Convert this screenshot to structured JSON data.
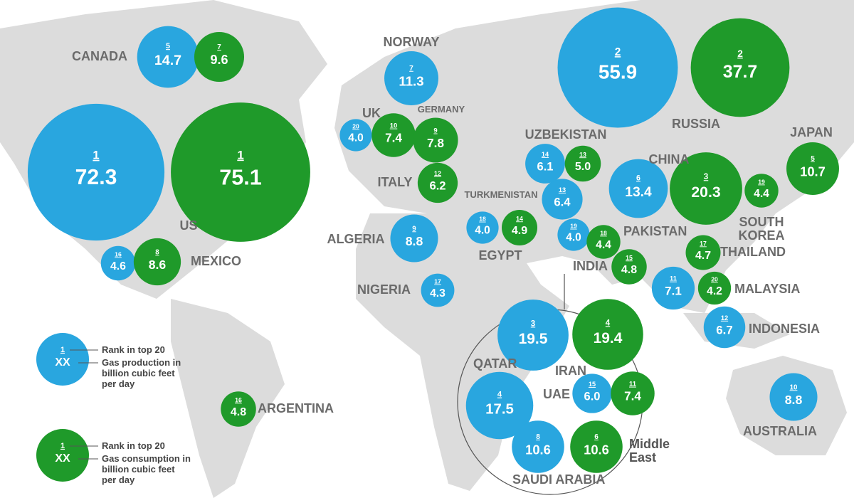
{
  "colors": {
    "production": "#29a6df",
    "consumption": "#1f9a2a"
  },
  "countries": [
    {
      "name": "CANADA",
      "production": {
        "rank": 5,
        "value": 14.7
      },
      "consumption": {
        "rank": 7,
        "value": 9.6
      }
    },
    {
      "name": "US",
      "production": {
        "rank": 1,
        "value": 72.3
      },
      "consumption": {
        "rank": 1,
        "value": 75.1
      }
    },
    {
      "name": "MEXICO",
      "production": {
        "rank": 16,
        "value": 4.6
      },
      "consumption": {
        "rank": 8,
        "value": 8.6
      }
    },
    {
      "name": "NORWAY",
      "production": {
        "rank": 7,
        "value": 11.3
      }
    },
    {
      "name": "UK",
      "production": {
        "rank": 20,
        "value": 4.0,
        "label": "4.0"
      },
      "consumption": {
        "rank": 10,
        "value": 7.4
      }
    },
    {
      "name": "GERMANY",
      "consumption": {
        "rank": 9,
        "value": 7.8
      }
    },
    {
      "name": "ITALY",
      "consumption": {
        "rank": 12,
        "value": 6.2
      }
    },
    {
      "name": "ALGERIA",
      "production": {
        "rank": 9,
        "value": 8.8
      }
    },
    {
      "name": "EGYPT",
      "production": {
        "rank": 18,
        "value": 4.0,
        "label": "4.0"
      },
      "consumption": {
        "rank": 14,
        "value": 4.9
      }
    },
    {
      "name": "TURKMENISTAN",
      "production": {
        "rank": 13,
        "value": 6.4
      }
    },
    {
      "name": "UZBEKISTAN",
      "production": {
        "rank": 14,
        "value": 6.1
      },
      "consumption": {
        "rank": 13,
        "value": 5.0,
        "label": "5.0"
      }
    },
    {
      "name": "RUSSIA",
      "production": {
        "rank": 2,
        "value": 55.9
      },
      "consumption": {
        "rank": 2,
        "value": 37.7
      }
    },
    {
      "name": "CHINA",
      "production": {
        "rank": 6,
        "value": 13.4
      },
      "consumption": {
        "rank": 3,
        "value": 20.3
      }
    },
    {
      "name": "JAPAN",
      "consumption": {
        "rank": 5,
        "value": 10.7
      }
    },
    {
      "name": "SOUTH KOREA",
      "consumption": {
        "rank": 19,
        "value": 4.4
      }
    },
    {
      "name": "PAKISTAN",
      "production": {
        "rank": 19,
        "value": 4.0,
        "label": "4.0"
      },
      "consumption": {
        "rank": 18,
        "value": 4.4
      }
    },
    {
      "name": "INDIA",
      "consumption": {
        "rank": 15,
        "value": 4.8
      }
    },
    {
      "name": "THAILAND",
      "consumption": {
        "rank": 17,
        "value": 4.7
      }
    },
    {
      "name": "MALAYSIA",
      "production": {
        "rank": 11,
        "value": 7.1
      },
      "consumption": {
        "rank": 20,
        "value": 4.2
      }
    },
    {
      "name": "INDONESIA",
      "production": {
        "rank": 12,
        "value": 6.7
      }
    },
    {
      "name": "NIGERIA",
      "production": {
        "rank": 17,
        "value": 4.3
      }
    },
    {
      "name": "ARGENTINA",
      "consumption": {
        "rank": 16,
        "value": 4.8
      }
    },
    {
      "name": "IRAN",
      "production": {
        "rank": 3,
        "value": 19.5
      },
      "consumption": {
        "rank": 4,
        "value": 19.4
      }
    },
    {
      "name": "QATAR",
      "production": {
        "rank": 4,
        "value": 17.5
      }
    },
    {
      "name": "UAE",
      "production": {
        "rank": 15,
        "value": 6.0,
        "label": "6.0"
      },
      "consumption": {
        "rank": 11,
        "value": 7.4
      }
    },
    {
      "name": "SAUDI ARABIA",
      "production": {
        "rank": 8,
        "value": 10.6
      },
      "consumption": {
        "rank": 6,
        "value": 10.6
      }
    },
    {
      "name": "AUSTRALIA",
      "production": {
        "rank": 10,
        "value": 8.8
      }
    }
  ],
  "region_label": "Middle East",
  "legend": {
    "production": {
      "rank": "1",
      "value": "XX",
      "rank_text": "Rank in top 20",
      "description": "Gas production in billion cubic feet per day"
    },
    "consumption": {
      "rank": "1",
      "value": "XX",
      "rank_text": "Rank in top 20",
      "description": "Gas consumption in billion cubic feet per day"
    }
  }
}
